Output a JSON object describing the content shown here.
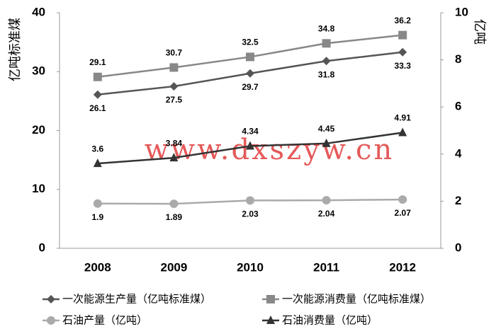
{
  "chart_data": {
    "type": "line",
    "y_label": "亿吨标准煤",
    "y2_label": "亿吨",
    "watermark": "www.dxszyw.cn",
    "categories": [
      "2008",
      "2009",
      "2010",
      "2011",
      "2012"
    ],
    "ylim": [
      0,
      40
    ],
    "yticks": [
      0,
      10,
      20,
      30,
      40
    ],
    "y2lim": [
      0,
      10
    ],
    "y2ticks": [
      0,
      2,
      4,
      6,
      8,
      10
    ],
    "series": [
      {
        "name": "一次能源生产量（亿吨标准煤）",
        "color": "#555555",
        "marker": "diamond",
        "label_position": "below",
        "values": [
          26.1,
          27.5,
          29.7,
          31.8,
          33.3
        ]
      },
      {
        "name": "一次能源消费量（亿吨标准煤）",
        "color": "#888888",
        "marker": "square",
        "label_position": "above",
        "values": [
          29.1,
          30.7,
          32.5,
          34.8,
          36.2
        ]
      },
      {
        "name": "石油产量（亿吨）",
        "color": "#aaaaaa",
        "marker": "circle",
        "label_position": "below",
        "axis": "y2",
        "values": [
          1.9,
          1.89,
          2.03,
          2.04,
          2.07
        ]
      },
      {
        "name": "石油消费量（亿吨）",
        "color": "#333333",
        "marker": "triangle",
        "label_position": "above",
        "axis": "y2",
        "values": [
          3.6,
          3.84,
          4.34,
          4.45,
          4.91
        ]
      }
    ]
  }
}
